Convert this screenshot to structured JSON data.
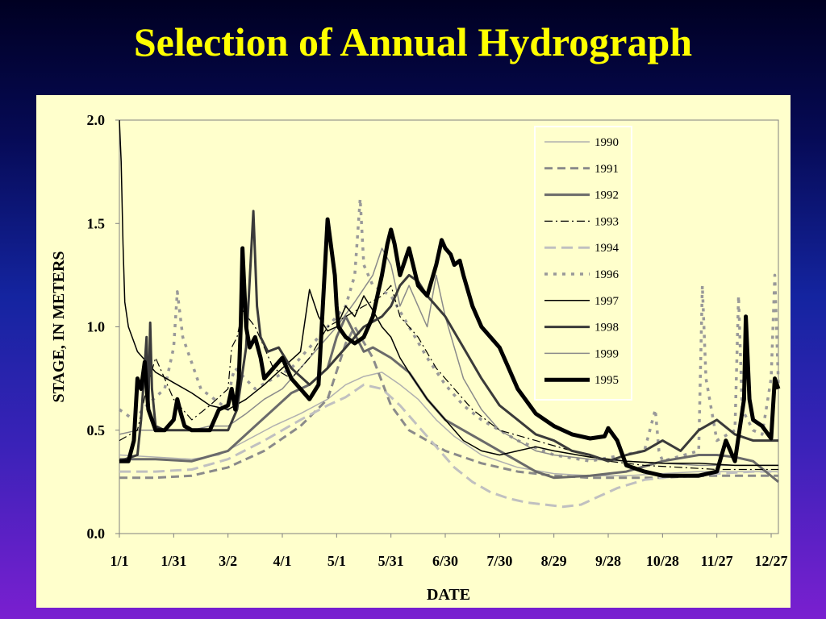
{
  "title": "Selection of Annual Hydrograph",
  "chart_data": {
    "type": "line",
    "xlabel": "DATE",
    "ylabel": "STAGE, IN METERS",
    "xlim": [
      0,
      364
    ],
    "ylim": [
      0,
      2
    ],
    "grid": false,
    "legend_placement": "top-right",
    "x_ticks": [
      {
        "day": 0,
        "label": "1/1"
      },
      {
        "day": 30,
        "label": "1/31"
      },
      {
        "day": 60,
        "label": "3/2"
      },
      {
        "day": 90,
        "label": "4/1"
      },
      {
        "day": 120,
        "label": "5/1"
      },
      {
        "day": 150,
        "label": "5/31"
      },
      {
        "day": 180,
        "label": "6/30"
      },
      {
        "day": 210,
        "label": "7/30"
      },
      {
        "day": 240,
        "label": "8/29"
      },
      {
        "day": 270,
        "label": "9/28"
      },
      {
        "day": 300,
        "label": "10/28"
      },
      {
        "day": 330,
        "label": "11/27"
      },
      {
        "day": 360,
        "label": "12/27"
      }
    ],
    "y_ticks": [
      {
        "value": 0,
        "label": "0.0"
      },
      {
        "value": 0.5,
        "label": "0.5"
      },
      {
        "value": 1,
        "label": "1.0"
      },
      {
        "value": 1.5,
        "label": "1.5"
      },
      {
        "value": 2,
        "label": "2.0"
      }
    ],
    "series": [
      {
        "name": "1990",
        "color": "#b0b0b0",
        "width": 1.5,
        "dash": "",
        "x": [
          0,
          20,
          40,
          55,
          70,
          85,
          100,
          115,
          125,
          135,
          145,
          155,
          165,
          175,
          185,
          200,
          220,
          240,
          260,
          280,
          300,
          320,
          340,
          364
        ],
        "y": [
          0.38,
          0.37,
          0.36,
          0.38,
          0.45,
          0.52,
          0.58,
          0.65,
          0.72,
          0.76,
          0.78,
          0.72,
          0.65,
          0.55,
          0.47,
          0.38,
          0.32,
          0.29,
          0.28,
          0.28,
          0.29,
          0.3,
          0.3,
          0.3
        ]
      },
      {
        "name": "1991",
        "color": "#8a8a8a",
        "width": 3,
        "dash": "10,6",
        "x": [
          0,
          10,
          20,
          40,
          60,
          80,
          100,
          115,
          125,
          130,
          140,
          150,
          160,
          170,
          180,
          200,
          220,
          240,
          260,
          280,
          300,
          320,
          340,
          364
        ],
        "y": [
          0.27,
          0.27,
          0.27,
          0.28,
          0.32,
          0.4,
          0.52,
          0.65,
          0.92,
          1.0,
          0.85,
          0.62,
          0.5,
          0.45,
          0.4,
          0.34,
          0.3,
          0.28,
          0.27,
          0.27,
          0.27,
          0.28,
          0.28,
          0.28
        ]
      },
      {
        "name": "1992",
        "color": "#6a6a6a",
        "width": 3,
        "dash": "",
        "x": [
          0,
          20,
          40,
          60,
          75,
          85,
          95,
          105,
          115,
          120,
          125,
          135,
          140,
          150,
          160,
          170,
          180,
          190,
          200,
          210,
          220,
          230,
          240,
          260,
          280,
          300,
          320,
          330,
          340,
          350,
          364
        ],
        "y": [
          0.36,
          0.36,
          0.35,
          0.4,
          0.52,
          0.6,
          0.68,
          0.72,
          0.8,
          0.95,
          1.05,
          0.88,
          0.9,
          0.85,
          0.78,
          0.65,
          0.55,
          0.5,
          0.45,
          0.4,
          0.35,
          0.3,
          0.27,
          0.28,
          0.3,
          0.35,
          0.38,
          0.38,
          0.37,
          0.35,
          0.25
        ]
      },
      {
        "name": "1993",
        "color": "#000000",
        "width": 1.2,
        "dash": "10,4,2,4",
        "x": [
          0,
          10,
          15,
          20,
          30,
          40,
          50,
          60,
          62,
          65,
          68,
          75,
          80,
          85,
          95,
          105,
          115,
          125,
          135,
          145,
          150,
          155,
          165,
          175,
          185,
          195,
          210,
          230,
          250,
          270,
          290,
          310,
          330,
          350,
          364
        ],
        "y": [
          0.45,
          0.5,
          0.7,
          0.85,
          0.65,
          0.55,
          0.62,
          0.7,
          0.9,
          0.95,
          1.08,
          1.0,
          0.9,
          0.8,
          0.75,
          0.85,
          1.0,
          1.05,
          1.1,
          1.15,
          1.2,
          1.05,
          0.95,
          0.8,
          0.7,
          0.6,
          0.5,
          0.45,
          0.4,
          0.35,
          0.33,
          0.32,
          0.31,
          0.31,
          0.31
        ]
      },
      {
        "name": "1994",
        "color": "#c0c0c0",
        "width": 3,
        "dash": "14,7",
        "x": [
          0,
          20,
          40,
          60,
          80,
          100,
          115,
          125,
          135,
          145,
          155,
          165,
          175,
          185,
          195,
          205,
          215,
          225,
          235,
          245,
          255,
          265,
          275,
          290,
          310,
          330,
          350,
          364
        ],
        "y": [
          0.3,
          0.3,
          0.31,
          0.36,
          0.45,
          0.55,
          0.62,
          0.66,
          0.72,
          0.7,
          0.62,
          0.52,
          0.42,
          0.32,
          0.25,
          0.2,
          0.17,
          0.15,
          0.14,
          0.13,
          0.14,
          0.18,
          0.22,
          0.26,
          0.28,
          0.29,
          0.3,
          0.3
        ]
      },
      {
        "name": "1996",
        "color": "#999999",
        "width": 3.5,
        "dash": "4,7",
        "x": [
          0,
          8,
          15,
          25,
          30,
          32,
          35,
          45,
          60,
          62,
          64,
          75,
          85,
          95,
          105,
          115,
          125,
          130,
          133,
          135,
          140,
          150,
          160,
          170,
          180,
          190,
          200,
          220,
          240,
          260,
          290,
          296,
          298,
          300,
          320,
          322,
          324,
          330,
          340,
          342,
          344,
          350,
          355,
          360,
          362,
          364
        ],
        "y": [
          0.6,
          0.55,
          0.62,
          0.7,
          0.9,
          1.17,
          0.95,
          0.7,
          0.6,
          0.75,
          0.8,
          0.7,
          0.75,
          0.8,
          0.9,
          1.0,
          1.1,
          1.25,
          1.62,
          1.3,
          1.2,
          1.15,
          1.0,
          0.85,
          0.72,
          0.62,
          0.55,
          0.45,
          0.38,
          0.35,
          0.4,
          0.6,
          0.4,
          0.35,
          0.4,
          1.2,
          0.75,
          0.45,
          0.5,
          1.15,
          0.6,
          0.5,
          0.48,
          0.75,
          1.25,
          0.72
        ]
      },
      {
        "name": "1997",
        "color": "#000000",
        "width": 1.5,
        "dash": "",
        "x": [
          0,
          1,
          2,
          3,
          5,
          10,
          20,
          30,
          40,
          50,
          60,
          70,
          80,
          90,
          100,
          105,
          110,
          115,
          120,
          125,
          130,
          135,
          140,
          145,
          150,
          155,
          160,
          170,
          180,
          190,
          200,
          210,
          220,
          230,
          240,
          260,
          280,
          300,
          320,
          340,
          364
        ],
        "y": [
          2.0,
          1.8,
          1.4,
          1.12,
          1.0,
          0.88,
          0.78,
          0.73,
          0.68,
          0.62,
          0.6,
          0.65,
          0.72,
          0.8,
          0.88,
          1.18,
          1.05,
          0.98,
          1.0,
          1.1,
          1.05,
          1.15,
          1.08,
          1.0,
          0.95,
          0.85,
          0.78,
          0.65,
          0.55,
          0.45,
          0.4,
          0.38,
          0.4,
          0.42,
          0.4,
          0.37,
          0.35,
          0.34,
          0.34,
          0.33,
          0.33
        ]
      },
      {
        "name": "1998",
        "color": "#3a3a3a",
        "width": 3,
        "dash": "",
        "x": [
          0,
          10,
          12,
          15,
          16,
          17,
          18,
          20,
          25,
          40,
          60,
          65,
          70,
          74,
          76,
          78,
          82,
          88,
          95,
          105,
          115,
          125,
          135,
          145,
          150,
          155,
          160,
          165,
          170,
          175,
          180,
          190,
          200,
          210,
          220,
          230,
          240,
          250,
          260,
          270,
          280,
          290,
          300,
          310,
          320,
          330,
          340,
          350,
          364
        ],
        "y": [
          0.35,
          0.38,
          0.55,
          0.95,
          0.6,
          1.02,
          0.7,
          0.52,
          0.5,
          0.5,
          0.5,
          0.6,
          0.9,
          1.56,
          1.1,
          0.95,
          0.88,
          0.9,
          0.8,
          0.72,
          0.8,
          0.9,
          1.0,
          1.05,
          1.1,
          1.2,
          1.25,
          1.22,
          1.15,
          1.1,
          1.05,
          0.9,
          0.75,
          0.62,
          0.55,
          0.48,
          0.45,
          0.4,
          0.38,
          0.35,
          0.38,
          0.4,
          0.45,
          0.4,
          0.5,
          0.55,
          0.48,
          0.45,
          0.45
        ]
      },
      {
        "name": "1999",
        "color": "#8a8a8a",
        "width": 1.5,
        "dash": "",
        "x": [
          0,
          10,
          20,
          30,
          40,
          50,
          60,
          70,
          80,
          90,
          100,
          110,
          120,
          130,
          140,
          145,
          150,
          155,
          160,
          170,
          175,
          180,
          185,
          190,
          200,
          210,
          220,
          230,
          240,
          260,
          280,
          300,
          320,
          340,
          364
        ],
        "y": [
          0.48,
          0.5,
          0.5,
          0.5,
          0.5,
          0.52,
          0.52,
          0.58,
          0.65,
          0.7,
          0.8,
          0.9,
          1.0,
          1.12,
          1.25,
          1.38,
          1.3,
          1.1,
          1.2,
          1.0,
          1.25,
          1.05,
          0.9,
          0.75,
          0.6,
          0.5,
          0.45,
          0.4,
          0.38,
          0.36,
          0.35,
          0.34,
          0.33,
          0.33,
          0.33
        ]
      },
      {
        "name": "1995",
        "color": "#000000",
        "width": 5,
        "dash": "",
        "x": [
          0,
          5,
          8,
          10,
          12,
          14,
          16,
          20,
          25,
          30,
          32,
          34,
          36,
          40,
          45,
          50,
          55,
          60,
          62,
          64,
          66,
          67,
          68,
          70,
          72,
          75,
          78,
          80,
          85,
          90,
          95,
          100,
          105,
          110,
          115,
          119,
          120,
          121,
          125,
          130,
          135,
          140,
          145,
          148,
          150,
          152,
          155,
          160,
          165,
          170,
          175,
          178,
          180,
          183,
          185,
          188,
          190,
          195,
          200,
          205,
          210,
          215,
          220,
          230,
          240,
          250,
          260,
          268,
          270,
          275,
          280,
          290,
          300,
          310,
          320,
          330,
          335,
          340,
          345,
          346,
          348,
          350,
          355,
          360,
          362,
          364
        ],
        "y": [
          0.35,
          0.35,
          0.45,
          0.75,
          0.7,
          0.83,
          0.6,
          0.5,
          0.5,
          0.55,
          0.65,
          0.58,
          0.52,
          0.5,
          0.5,
          0.5,
          0.6,
          0.62,
          0.7,
          0.6,
          0.75,
          1.0,
          1.38,
          1.0,
          0.9,
          0.95,
          0.85,
          0.75,
          0.8,
          0.85,
          0.75,
          0.7,
          0.65,
          0.72,
          1.52,
          1.25,
          1.1,
          1.0,
          0.95,
          0.92,
          0.95,
          1.05,
          1.25,
          1.4,
          1.47,
          1.4,
          1.25,
          1.38,
          1.2,
          1.15,
          1.3,
          1.42,
          1.38,
          1.35,
          1.3,
          1.32,
          1.25,
          1.1,
          1.0,
          0.95,
          0.9,
          0.8,
          0.7,
          0.58,
          0.52,
          0.48,
          0.46,
          0.47,
          0.51,
          0.45,
          0.33,
          0.3,
          0.28,
          0.28,
          0.28,
          0.3,
          0.45,
          0.35,
          0.65,
          1.05,
          0.65,
          0.55,
          0.52,
          0.46,
          0.75,
          0.7
        ]
      }
    ]
  }
}
